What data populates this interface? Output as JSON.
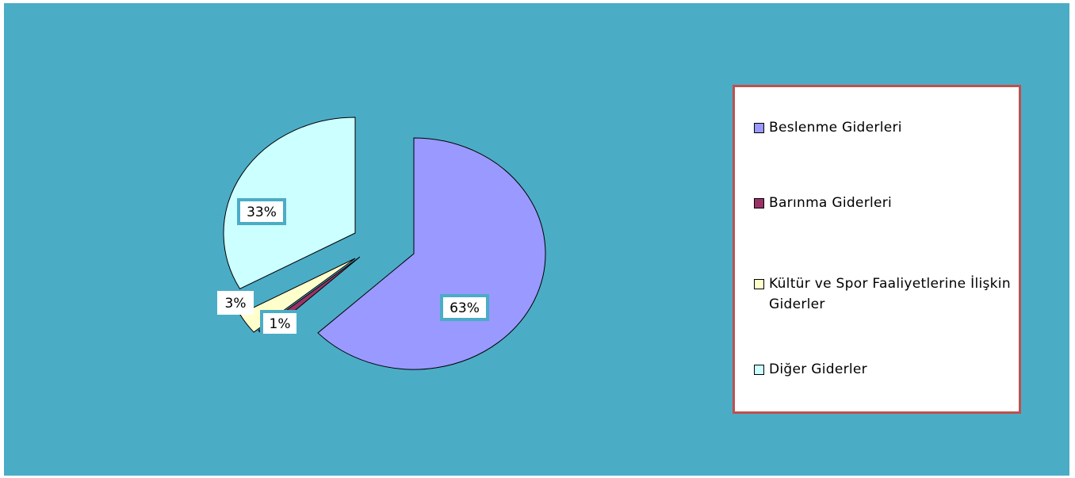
{
  "chart_data": {
    "type": "pie",
    "exploded": true,
    "three_d": true,
    "categories": [
      "Beslenme Giderleri",
      "Barınma Giderleri",
      "Kültür ve Spor Faaliyetlerine İlişkin Giderler",
      "Diğer Giderler"
    ],
    "values": [
      63,
      1,
      3,
      33
    ],
    "data_labels": [
      "63%",
      "1%",
      "3%",
      "33%"
    ],
    "colors": [
      "#9999FF",
      "#993366",
      "#FFFFCC",
      "#CCFFFF"
    ],
    "legend_placement": "right",
    "background": "#4BACC6",
    "legend_border": "#C0504D"
  }
}
